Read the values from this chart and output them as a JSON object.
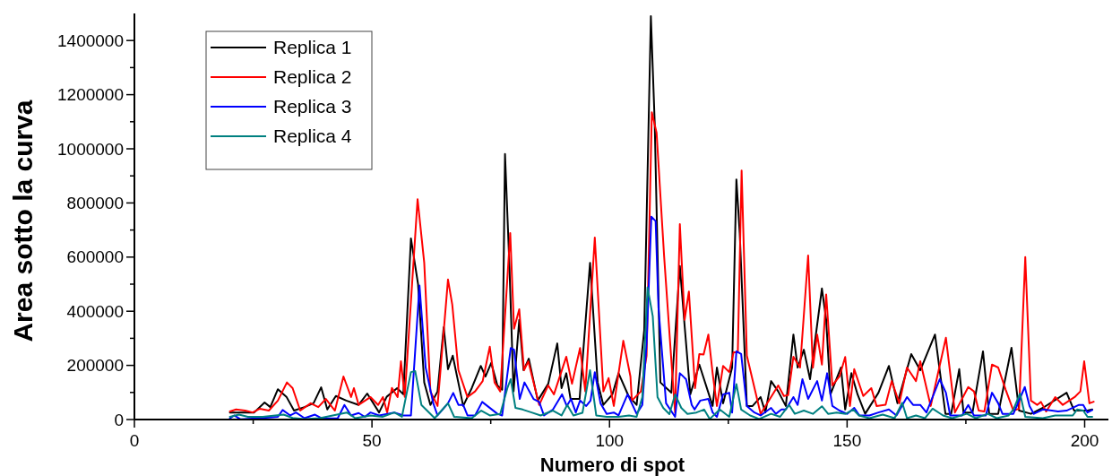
{
  "chart_data": {
    "type": "line",
    "xlabel": "Numero di spot",
    "ylabel": "Area sotto la curva",
    "xlim": [
      0,
      205
    ],
    "ylim": [
      0,
      1500000
    ],
    "xticks": [
      0,
      {
        "value": 25,
        "label": null
      },
      50,
      {
        "value": 75,
        "label": null
      },
      100,
      {
        "value": 125,
        "label": null
      },
      150,
      {
        "value": 175,
        "label": null
      },
      200
    ],
    "yticks": [
      0,
      {
        "value": 100000,
        "label": null
      },
      200000,
      {
        "value": 300000,
        "label": null
      },
      400000,
      {
        "value": 500000,
        "label": null
      },
      600000,
      {
        "value": 700000,
        "label": null
      },
      800000,
      {
        "value": 900000,
        "label": null
      },
      1000000,
      {
        "value": 1100000,
        "label": null
      },
      1200000,
      {
        "value": 1300000,
        "label": null
      },
      1400000
    ],
    "legend": "top left",
    "grid": false,
    "marker": "none",
    "line_style": "solid",
    "series": [
      {
        "name": "Replica 1",
        "color": "#000000",
        "x": [
          20.1,
          25.2,
          27.4,
          28.6,
          30.2,
          32,
          33.6,
          35.8,
          37.7,
          39.3,
          40.6,
          42.4,
          44.6,
          47.2,
          49,
          51.5,
          53.1,
          55.3,
          56.6,
          58.2,
          59.7,
          61,
          62.3,
          63.8,
          65.1,
          66,
          67,
          69.2,
          71,
          72.9,
          73.9,
          75.1,
          76.4,
          77.4,
          78,
          78.9,
          79.8,
          81,
          81.9,
          83,
          84.9,
          87.1,
          89,
          89.9,
          90.9,
          91.8,
          93.7,
          95.9,
          97.5,
          98.7,
          100.6,
          101.9,
          104,
          105.7,
          107.3,
          108.7,
          109.5,
          110.7,
          113,
          114.8,
          115.8,
          117,
          118.9,
          121.7,
          122.6,
          123.9,
          125.8,
          126.7,
          127.4,
          128.9,
          130.1,
          131.8,
          132.8,
          134,
          135.5,
          137.1,
          138.7,
          139.6,
          140.9,
          142.2,
          144.7,
          145.6,
          146.5,
          148.7,
          149.6,
          150.9,
          152.2,
          153.8,
          156.6,
          158.8,
          160.6,
          163.5,
          165.4,
          168.5,
          170.7,
          171.9,
          173.6,
          174.5,
          176.4,
          178.6,
          179.9,
          181.8,
          184.6,
          186.2,
          188.7,
          191.2,
          196.2,
          197.8,
          200.6,
          201.6
        ],
        "values": [
          26000,
          26000,
          63000,
          46000,
          112000,
          84000,
          33000,
          46000,
          60000,
          119000,
          37000,
          87000,
          70000,
          54000,
          96000,
          26000,
          84000,
          116000,
          93000,
          669000,
          500000,
          137000,
          54000,
          104000,
          341000,
          186000,
          236000,
          50000,
          116000,
          198000,
          159000,
          209000,
          126000,
          110000,
          981000,
          580000,
          104000,
          368000,
          182000,
          225000,
          70000,
          132000,
          281000,
          116000,
          171000,
          76000,
          76000,
          579000,
          137000,
          54000,
          93000,
          171000,
          87000,
          54000,
          330000,
          1490000,
          1100000,
          137000,
          99000,
          567000,
          347000,
          93000,
          203000,
          50000,
          192000,
          60000,
          192000,
          887000,
          689000,
          50000,
          50000,
          83000,
          26000,
          142000,
          104000,
          50000,
          314000,
          192000,
          258000,
          149000,
          484000,
          368000,
          93000,
          192000,
          37000,
          171000,
          93000,
          21000,
          99000,
          198000,
          60000,
          242000,
          182000,
          314000,
          21000,
          21000,
          186000,
          26000,
          26000,
          252000,
          21000,
          21000,
          265000,
          33000,
          21000,
          43000,
          99000,
          33000,
          33000,
          37000
        ]
      },
      {
        "name": "Replica 2",
        "color": "#ff0000",
        "x": [
          20.1,
          21.4,
          23.3,
          24.9,
          26.4,
          28.3,
          30.2,
          32.1,
          33.3,
          34.9,
          37.1,
          38.7,
          40.3,
          42.2,
          44,
          45.6,
          46.2,
          47.2,
          49.7,
          51.3,
          52.3,
          53.2,
          54.2,
          55.4,
          56.1,
          56.9,
          59.6,
          61,
          62.3,
          63.8,
          66,
          66.9,
          68.2,
          70.1,
          71.7,
          73.3,
          74.8,
          75.8,
          77,
          79.1,
          79.9,
          81,
          82,
          82.9,
          85.2,
          87.1,
          88.3,
          90.9,
          92.1,
          93.8,
          94.9,
          96.9,
          98.7,
          99.8,
          100.9,
          102.9,
          104.4,
          104.7,
          106.6,
          107.8,
          108.9,
          109.9,
          111.5,
          113.2,
          113.8,
          114.8,
          115.8,
          116.7,
          118,
          118.9,
          119.8,
          120.8,
          121.7,
          122.6,
          123.9,
          125.2,
          126.1,
          127,
          127.8,
          128.9,
          131.8,
          135.5,
          136.7,
          137.6,
          138.7,
          140.1,
          141.8,
          142.8,
          143.7,
          144.7,
          145.6,
          146.9,
          148.4,
          149.6,
          150.6,
          151.5,
          153.4,
          155.1,
          156.2,
          158.1,
          159.4,
          161,
          162.6,
          164.5,
          165.4,
          167.6,
          170.8,
          172.7,
          175.5,
          176.7,
          177.7,
          178.9,
          180.5,
          181.8,
          183.4,
          185,
          186.2,
          187.5,
          188.7,
          190,
          190.8,
          191.9,
          193.8,
          195.4,
          197.9,
          199.1,
          199.9,
          201,
          201.9
        ],
        "values": [
          30000,
          37000,
          33000,
          26000,
          40000,
          33000,
          70000,
          137000,
          116000,
          33000,
          60000,
          46000,
          76000,
          33000,
          159000,
          83000,
          116000,
          54000,
          83000,
          54000,
          83000,
          26000,
          117000,
          83000,
          215000,
          84000,
          814000,
          579000,
          104000,
          50000,
          517000,
          424000,
          182000,
          83000,
          104000,
          142000,
          269000,
          137000,
          104000,
          689000,
          335000,
          407000,
          182000,
          215000,
          54000,
          126000,
          93000,
          232000,
          132000,
          264000,
          104000,
          672000,
          104000,
          153000,
          50000,
          291000,
          159000,
          70000,
          104000,
          236000,
          1135000,
          1060000,
          600000,
          171000,
          26000,
          722000,
          368000,
          473000,
          116000,
          242000,
          240000,
          314000,
          171000,
          50000,
          198000,
          175000,
          248000,
          248000,
          920000,
          236000,
          21000,
          126000,
          87000,
          90000,
          232000,
          192000,
          606000,
          192000,
          314000,
          203000,
          462000,
          126000,
          159000,
          231000,
          50000,
          186000,
          87000,
          116000,
          50000,
          55000,
          142000,
          60000,
          192000,
          142000,
          215000,
          50000,
          302000,
          26000,
          120000,
          104000,
          33000,
          30000,
          203000,
          192000,
          109000,
          33000,
          40000,
          600000,
          70000,
          54000,
          65000,
          30000,
          83000,
          54000,
          83000,
          104000,
          215000,
          60000,
          66000
        ]
      },
      {
        "name": "Replica 3",
        "color": "#0000ff",
        "x": [
          20.1,
          21,
          22.3,
          26.4,
          30.2,
          31.2,
          32.8,
          34,
          35.8,
          38,
          39.6,
          42.8,
          44.2,
          45.6,
          47.2,
          48.5,
          49.7,
          51.5,
          54.7,
          56.6,
          58.2,
          60,
          61.3,
          62.9,
          63.8,
          66,
          67.1,
          68.2,
          69.2,
          70.1,
          71.7,
          73.2,
          76.4,
          77.4,
          79.2,
          79.9,
          81.1,
          82.1,
          84,
          85.2,
          86.2,
          88.1,
          90,
          91,
          91.9,
          92.9,
          93.8,
          95.1,
          96,
          96.9,
          98.1,
          99.4,
          100.9,
          101.9,
          103.8,
          105.7,
          106.9,
          107.8,
          108.8,
          109.7,
          110.3,
          111,
          111.9,
          113.8,
          114.8,
          116.1,
          117.3,
          117.9,
          119.1,
          120.8,
          121.7,
          122.6,
          123.9,
          125.2,
          125.8,
          126.7,
          127.7,
          128.9,
          130.5,
          131.8,
          134,
          135,
          136.2,
          137.1,
          138.7,
          139.6,
          140.6,
          141.8,
          143.7,
          144.7,
          145.8,
          146.9,
          148.4,
          150,
          151.5,
          152.6,
          154.7,
          156.6,
          158.8,
          160.4,
          162.6,
          163.9,
          165.4,
          166.7,
          169.5,
          170.8,
          171.7,
          174.2,
          175.5,
          176.7,
          179.2,
          180.5,
          181.8,
          182.7,
          185,
          187.4,
          188.4,
          189.3,
          191.2,
          193.1,
          194.4,
          196.2,
          198.8,
          199.7,
          200.6,
          201.6
        ],
        "values": [
          4000,
          15000,
          1000,
          5000,
          10000,
          35000,
          15000,
          26000,
          5000,
          18000,
          3000,
          5000,
          54000,
          15000,
          24000,
          10000,
          26000,
          15000,
          26000,
          15000,
          15000,
          495000,
          192000,
          60000,
          15000,
          60000,
          98000,
          54000,
          54000,
          15000,
          15000,
          65000,
          21000,
          15000,
          264000,
          258000,
          76000,
          137000,
          76000,
          65000,
          15000,
          37000,
          93000,
          50000,
          76000,
          26000,
          70000,
          50000,
          70000,
          175000,
          60000,
          21000,
          26000,
          15000,
          93000,
          21000,
          54000,
          281000,
          749000,
          733000,
          414000,
          258000,
          60000,
          10000,
          171000,
          149000,
          54000,
          37000,
          70000,
          76000,
          26000,
          10000,
          93000,
          99000,
          26000,
          252000,
          242000,
          50000,
          26000,
          15000,
          43000,
          21000,
          37000,
          37000,
          83000,
          54000,
          149000,
          76000,
          142000,
          70000,
          171000,
          50000,
          33000,
          21000,
          43000,
          15000,
          15000,
          26000,
          37000,
          15000,
          83000,
          54000,
          54000,
          26000,
          149000,
          99000,
          15000,
          15000,
          54000,
          15000,
          15000,
          99000,
          60000,
          21000,
          21000,
          120000,
          50000,
          21000,
          37000,
          33000,
          30000,
          33000,
          54000,
          54000,
          26000,
          35000
        ]
      },
      {
        "name": "Replica 4",
        "color": "#008080",
        "x": [
          20.1,
          22,
          23.9,
          27,
          31.4,
          33.3,
          35.8,
          39,
          44.7,
          46.5,
          49.7,
          52.2,
          54.7,
          56.3,
          58.2,
          59.1,
          60.4,
          63.2,
          66,
          67.3,
          71,
          73,
          74.8,
          77,
          78.5,
          79.2,
          80.2,
          81.7,
          83.6,
          85.5,
          88.1,
          89.9,
          91.1,
          92.4,
          94.3,
          95.9,
          97.2,
          99.4,
          101.9,
          104.1,
          105.7,
          106.9,
          108,
          109.1,
          110.1,
          111.3,
          112.6,
          113.8,
          115.1,
          116.4,
          118.3,
          119.9,
          121.1,
          123.2,
          125.2,
          126.7,
          127.7,
          129.6,
          131.5,
          134,
          135.9,
          137.8,
          139,
          140.9,
          142.8,
          144.7,
          146,
          147.8,
          149.7,
          151.3,
          152.5,
          154.7,
          157.5,
          160,
          161.6,
          162.6,
          164.5,
          166.4,
          168,
          170.2,
          172.1,
          175.2,
          177.1,
          179.6,
          181.5,
          184,
          185,
          186.4,
          187.5,
          191.2,
          193.8,
          197.5,
          198.4,
          199.7,
          200.6,
          201.6
        ],
        "values": [
          10000,
          18000,
          10000,
          10000,
          18000,
          6000,
          2000,
          5000,
          26000,
          5000,
          15000,
          10000,
          26000,
          10000,
          175000,
          179000,
          54000,
          5000,
          60000,
          10000,
          5000,
          33000,
          15000,
          21000,
          116000,
          149000,
          43000,
          37000,
          26000,
          15000,
          33000,
          15000,
          54000,
          15000,
          25000,
          182000,
          15000,
          10000,
          10000,
          15000,
          10000,
          83000,
          488000,
          381000,
          83000,
          43000,
          20000,
          93000,
          43000,
          21000,
          26000,
          37000,
          2000,
          37000,
          10000,
          131000,
          37000,
          15000,
          2000,
          21000,
          10000,
          54000,
          21000,
          33000,
          21000,
          49000,
          21000,
          26000,
          21000,
          37000,
          15000,
          5000,
          18000,
          5000,
          62000,
          5000,
          15000,
          5000,
          40000,
          15000,
          5000,
          21000,
          5000,
          21000,
          5000,
          15000,
          37000,
          96000,
          10000,
          5000,
          15000,
          15000,
          37000,
          33000,
          10000,
          10000
        ]
      }
    ]
  }
}
